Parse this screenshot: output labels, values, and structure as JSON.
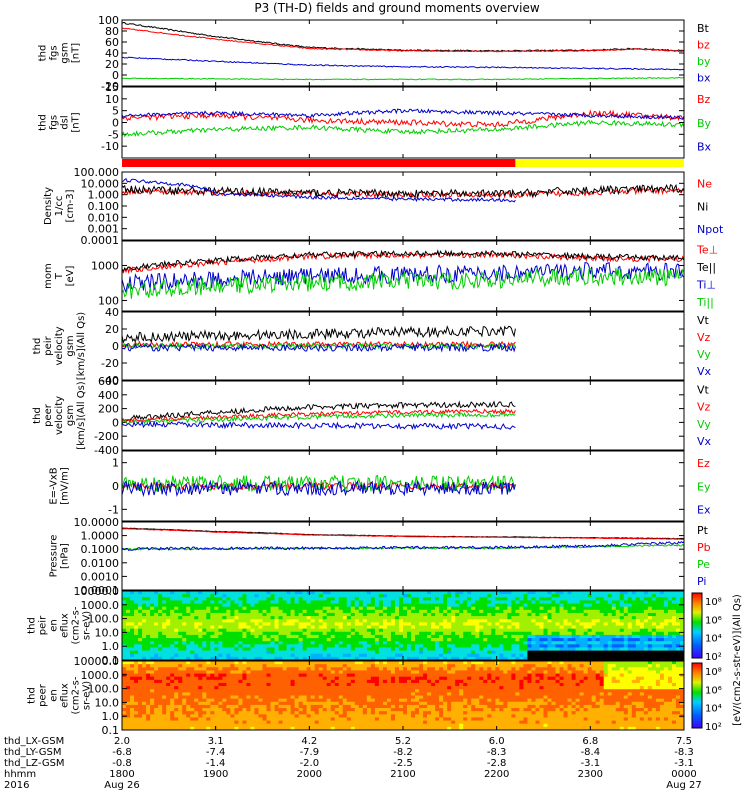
{
  "chart_data": {
    "type": "line",
    "title": "P3 (TH-D) fields and ground moments overview",
    "x_axis": {
      "rows": [
        {
          "label": "thd_LX-GSM",
          "ticks": [
            "2.0",
            "3.1",
            "4.2",
            "5.2",
            "6.0",
            "6.8",
            "7.5"
          ]
        },
        {
          "label": "thd_LY-GSM",
          "ticks": [
            "-6.8",
            "-7.4",
            "-7.9",
            "-8.2",
            "-8.3",
            "-8.4",
            "-8.3"
          ]
        },
        {
          "label": "thd_LZ-GSM",
          "ticks": [
            "-0.8",
            "-1.4",
            "-2.0",
            "-2.5",
            "-2.8",
            "-3.1",
            "-3.1"
          ]
        },
        {
          "label": "hhmm",
          "ticks": [
            "1800",
            "1900",
            "2000",
            "2100",
            "2200",
            "2300",
            "0000"
          ]
        },
        {
          "label": "2016",
          "ticks": [
            "Aug 26",
            "",
            "",
            "",
            "",
            "",
            "Aug 27"
          ]
        }
      ],
      "tick_hours": [
        18,
        19,
        20,
        21,
        22,
        23,
        24
      ],
      "range_hours": [
        18,
        24
      ]
    },
    "panels": [
      {
        "id": "fgs-gsm",
        "ylabel": [
          "thd",
          "fgs",
          "gsm",
          "[nT]"
        ],
        "scale": "linear",
        "ylim": [
          -20,
          100
        ],
        "ticks": [
          {
            "v": 100,
            "t": "100"
          },
          {
            "v": 80,
            "t": "80"
          },
          {
            "v": 60,
            "t": "60"
          },
          {
            "v": 40,
            "t": "40"
          },
          {
            "v": 20,
            "t": "20"
          },
          {
            "v": 0,
            "t": "0"
          },
          {
            "v": -20,
            "t": "-20"
          }
        ],
        "series": [
          {
            "name": "Bt",
            "color": "#000000",
            "t": [
              18,
              19,
              20,
              21,
              22,
              23,
              23.5,
              24
            ],
            "y": [
              95,
              70,
              50,
              45,
              44,
              45,
              48,
              44
            ],
            "noise": 1.2
          },
          {
            "name": "bz",
            "color": "#ff0000",
            "t": [
              18,
              19,
              20,
              21,
              22,
              23,
              23.5,
              24
            ],
            "y": [
              85,
              65,
              48,
              44,
              43,
              44,
              47,
              43
            ],
            "noise": 1.0
          },
          {
            "name": "by",
            "color": "#00cc00",
            "t": [
              18,
              20,
              22,
              24
            ],
            "y": [
              -6,
              -8,
              -8,
              -5
            ],
            "noise": 0.8
          },
          {
            "name": "bx",
            "color": "#0000cc",
            "t": [
              18,
              19,
              20,
              21,
              22,
              23,
              24
            ],
            "y": [
              32,
              25,
              18,
              15,
              14,
              12,
              10
            ],
            "noise": 1.0
          }
        ]
      },
      {
        "id": "fgs-dsl",
        "ylabel": [
          "thd",
          "fgs",
          "dsl",
          "[nT]"
        ],
        "scale": "linear",
        "ylim": [
          -15,
          15
        ],
        "ticks": [
          {
            "v": 15,
            "t": "15"
          },
          {
            "v": 10,
            "t": "10"
          },
          {
            "v": 5,
            "t": "5"
          },
          {
            "v": 0,
            "t": "0"
          },
          {
            "v": -5,
            "t": "-5"
          },
          {
            "v": -10,
            "t": "-10"
          }
        ],
        "series": [
          {
            "name": "Bz",
            "color": "#ff0000",
            "t": [
              18,
              19,
              20,
              21,
              22,
              23,
              24
            ],
            "y": [
              2,
              3,
              1,
              0,
              -1,
              4,
              2
            ],
            "noise": 1.2
          },
          {
            "name": "By",
            "color": "#00cc00",
            "t": [
              18,
              19,
              20,
              21,
              22,
              23,
              24
            ],
            "y": [
              -5,
              -3,
              -2,
              -4,
              -3,
              0,
              -1
            ],
            "noise": 1.0
          },
          {
            "name": "Bx",
            "color": "#0000cc",
            "t": [
              18,
              19,
              20,
              21,
              22,
              23,
              24
            ],
            "y": [
              3,
              4,
              3,
              5,
              4,
              3,
              2
            ],
            "noise": 0.8
          }
        ]
      },
      {
        "id": "density",
        "ylabel": [
          "Density",
          "1/cc",
          "[cm-3]"
        ],
        "scale": "log",
        "ylim": [
          0.0001,
          100
        ],
        "ticks": [
          {
            "v": 100,
            "t": "100.000"
          },
          {
            "v": 10,
            "t": "10.000"
          },
          {
            "v": 1,
            "t": "1.000"
          },
          {
            "v": 0.1,
            "t": "0.100"
          },
          {
            "v": 0.01,
            "t": "0.010"
          },
          {
            "v": 0.001,
            "t": "0.001"
          },
          {
            "v": 0.0001,
            "t": "0.0001"
          }
        ],
        "series": [
          {
            "name": "Ne",
            "color": "#ff0000",
            "t": [
              18,
              19,
              20,
              21,
              22,
              22.2,
              23,
              24
            ],
            "y": [
              2,
              1.5,
              1.2,
              1.0,
              1.0,
              0.9,
              1.5,
              2.5
            ],
            "noise": 0.25
          },
          {
            "name": "Ni",
            "color": "#000000",
            "t": [
              18,
              19,
              20,
              21,
              22,
              22.2,
              23,
              24
            ],
            "y": [
              3,
              2,
              1.5,
              1.2,
              1.2,
              1.2,
              2.5,
              3.5
            ],
            "noise": 0.35
          },
          {
            "name": "Npot",
            "color": "#0000cc",
            "t": [
              18,
              18.5,
              19,
              20,
              21,
              22,
              22.2
            ],
            "y": [
              20,
              10,
              1.2,
              0.6,
              0.4,
              0.35,
              0.3
            ],
            "noise": 0.15
          }
        ]
      },
      {
        "id": "mom-temp",
        "ylabel": [
          "mom",
          "T",
          "[eV]"
        ],
        "scale": "log",
        "ylim": [
          50,
          5000
        ],
        "ticks": [
          {
            "v": 1000,
            "t": "1000"
          },
          {
            "v": 100,
            "t": "100"
          }
        ],
        "series": [
          {
            "name": "Te⊥",
            "color": "#ff0000",
            "t": [
              18,
              19,
              20,
              21,
              22,
              23,
              24
            ],
            "y": [
              700,
              1200,
              1800,
              2000,
              2000,
              1600,
              1500
            ],
            "noise": 0.08
          },
          {
            "name": "Te||",
            "color": "#000000",
            "t": [
              18,
              19,
              20,
              21,
              22,
              23,
              24
            ],
            "y": [
              800,
              1400,
              2000,
              2200,
              2200,
              1800,
              1600
            ],
            "noise": 0.08
          },
          {
            "name": "Ti⊥",
            "color": "#0000cc",
            "t": [
              18,
              19,
              20,
              21,
              22,
              23,
              24
            ],
            "y": [
              300,
              400,
              500,
              550,
              600,
              700,
              650
            ],
            "noise": 0.25
          },
          {
            "name": "Ti||",
            "color": "#00cc00",
            "t": [
              18,
              19,
              20,
              21,
              22,
              23,
              24
            ],
            "y": [
              180,
              260,
              320,
              350,
              380,
              500,
              450
            ],
            "noise": 0.25
          }
        ]
      },
      {
        "id": "peir-velocity",
        "ylabel": [
          "thd",
          "peir",
          "velocity",
          "gsm",
          "[km/s](All Qs)"
        ],
        "scale": "linear",
        "ylim": [
          -40,
          40
        ],
        "ticks": [
          {
            "v": 40,
            "t": "40"
          },
          {
            "v": 20,
            "t": "20"
          },
          {
            "v": 0,
            "t": "0"
          },
          {
            "v": -20,
            "t": "-20"
          },
          {
            "v": -40,
            "t": "-40"
          }
        ],
        "series": [
          {
            "name": "Vt",
            "color": "#000000",
            "t": [
              18,
              19,
              20,
              21,
              22,
              22.2
            ],
            "y": [
              10,
              12,
              14,
              16,
              18,
              18
            ],
            "noise": 6
          },
          {
            "name": "Vz",
            "color": "#ff0000",
            "t": [
              18,
              22.2
            ],
            "y": [
              2,
              2
            ],
            "noise": 3
          },
          {
            "name": "Vy",
            "color": "#00cc00",
            "t": [
              18,
              22.2
            ],
            "y": [
              0,
              0
            ],
            "noise": 3
          },
          {
            "name": "Vx",
            "color": "#0000cc",
            "t": [
              18,
              22.2
            ],
            "y": [
              -2,
              -2
            ],
            "noise": 4
          }
        ]
      },
      {
        "id": "peer-velocity",
        "ylabel": [
          "thd",
          "peer",
          "velocity",
          "gsm",
          "[km/s](All Qs)"
        ],
        "scale": "linear",
        "ylim": [
          -400,
          600
        ],
        "ticks": [
          {
            "v": 600,
            "t": "600"
          },
          {
            "v": 400,
            "t": "400"
          },
          {
            "v": 200,
            "t": "200"
          },
          {
            "v": 0,
            "t": "0"
          },
          {
            "v": -200,
            "t": "-200"
          },
          {
            "v": -400,
            "t": "-400"
          }
        ],
        "series": [
          {
            "name": "Vt",
            "color": "#000000",
            "t": [
              18,
              19,
              20,
              21,
              22,
              22.2
            ],
            "y": [
              50,
              150,
              220,
              250,
              260,
              260
            ],
            "noise": 40
          },
          {
            "name": "Vz",
            "color": "#ff0000",
            "t": [
              18,
              19,
              20,
              21,
              22,
              22.2
            ],
            "y": [
              20,
              80,
              120,
              150,
              160,
              160
            ],
            "noise": 30
          },
          {
            "name": "Vy",
            "color": "#00cc00",
            "t": [
              18,
              19,
              20,
              21,
              22,
              22.2
            ],
            "y": [
              0,
              40,
              80,
              100,
              110,
              110
            ],
            "noise": 30
          },
          {
            "name": "Vx",
            "color": "#0000cc",
            "t": [
              18,
              22.2
            ],
            "y": [
              -30,
              -60
            ],
            "noise": 40
          }
        ]
      },
      {
        "id": "e-vxb",
        "ylabel": [
          "E=-VxB",
          "[mV/m]"
        ],
        "scale": "linear",
        "ylim": [
          -1.5,
          1.5
        ],
        "ticks": [
          {
            "v": 1,
            "t": "1"
          },
          {
            "v": 0,
            "t": "0"
          },
          {
            "v": -1,
            "t": "-1"
          }
        ],
        "series": [
          {
            "name": "Ez",
            "color": "#ff0000",
            "t": [
              18,
              22.2
            ],
            "y": [
              0,
              0
            ],
            "noise": 0.15
          },
          {
            "name": "Ey",
            "color": "#00cc00",
            "t": [
              18,
              22.2
            ],
            "y": [
              0.1,
              0.1
            ],
            "noise": 0.35
          },
          {
            "name": "Ex",
            "color": "#0000cc",
            "t": [
              18,
              22.2
            ],
            "y": [
              -0.1,
              -0.1
            ],
            "noise": 0.3
          }
        ]
      },
      {
        "id": "pressure",
        "ylabel": [
          "Pressure",
          "[nPa]"
        ],
        "scale": "log",
        "ylim": [
          0.0001,
          10
        ],
        "ticks": [
          {
            "v": 10,
            "t": "10.0000"
          },
          {
            "v": 1,
            "t": "1.0000"
          },
          {
            "v": 0.1,
            "t": "0.1000"
          },
          {
            "v": 0.01,
            "t": "0.0100"
          },
          {
            "v": 0.001,
            "t": "0.0010"
          },
          {
            "v": 0.0001,
            "t": "0.0001"
          }
        ],
        "series": [
          {
            "name": "Pt",
            "color": "#000000",
            "t": [
              18,
              19,
              20,
              21,
              22,
              23,
              24
            ],
            "y": [
              3.5,
              2.0,
              1.2,
              0.9,
              0.8,
              0.7,
              0.6
            ],
            "noise": 0.02
          },
          {
            "name": "Pb",
            "color": "#ff0000",
            "t": [
              18,
              19,
              20,
              21,
              22,
              23,
              24
            ],
            "y": [
              3.2,
              1.8,
              1.1,
              0.85,
              0.75,
              0.65,
              0.55
            ],
            "noise": 0.02
          },
          {
            "name": "Pe",
            "color": "#00cc00",
            "t": [
              18,
              19,
              20,
              21,
              22,
              23,
              24
            ],
            "y": [
              0.1,
              0.1,
              0.12,
              0.12,
              0.12,
              0.15,
              0.2
            ],
            "noise": 0.06
          },
          {
            "name": "Pi",
            "color": "#0000cc",
            "t": [
              18,
              19,
              20,
              21,
              22,
              23,
              24
            ],
            "y": [
              0.1,
              0.12,
              0.12,
              0.13,
              0.13,
              0.18,
              0.3
            ],
            "noise": 0.1
          }
        ]
      }
    ],
    "spectrograms": [
      {
        "id": "peir-eflux",
        "ylabel": [
          "thd",
          "peir",
          "en",
          "eflux",
          "(cm2-s-",
          "sr-eV)"
        ],
        "scale": "log",
        "ylim": [
          0.1,
          10000
        ],
        "ticks": [
          {
            "v": 10000,
            "t": "10000.0"
          },
          {
            "v": 1000,
            "t": "1000.0"
          },
          {
            "v": 100,
            "t": "100.0"
          },
          {
            "v": 10,
            "t": "10.0"
          },
          {
            "v": 1,
            "t": "1.0"
          },
          {
            "v": 0.1,
            "t": "0.1"
          }
        ],
        "colorbar": {
          "label": "[eV/(cm2-s-str-eV)](All Qs)",
          "ticks": [
            "10⁸",
            "10⁶",
            "10⁴",
            "10²"
          ]
        }
      },
      {
        "id": "peer-eflux",
        "ylabel": [
          "thd",
          "peer",
          "en",
          "eflux",
          "(cm2-s-",
          "sr-eV)"
        ],
        "scale": "log",
        "ylim": [
          0.1,
          10000
        ],
        "ticks": [
          {
            "v": 10000,
            "t": "10000.0"
          },
          {
            "v": 1000,
            "t": "1000.0"
          },
          {
            "v": 100,
            "t": "100.0"
          },
          {
            "v": 10,
            "t": "10.0"
          },
          {
            "v": 1,
            "t": "1.0"
          },
          {
            "v": 0.1,
            "t": "0.1"
          }
        ],
        "colorbar": {
          "label": "[eV/(cm2-s-str-eV)](All Qs)",
          "ticks": [
            "10⁸",
            "10⁶",
            "10⁴",
            "10²"
          ]
        }
      }
    ],
    "mode_bar": [
      {
        "t0": 18,
        "t1": 22.2,
        "color": "#ff0000"
      },
      {
        "t0": 22.2,
        "t1": 24,
        "color": "#ffff00"
      }
    ],
    "grid": false
  }
}
